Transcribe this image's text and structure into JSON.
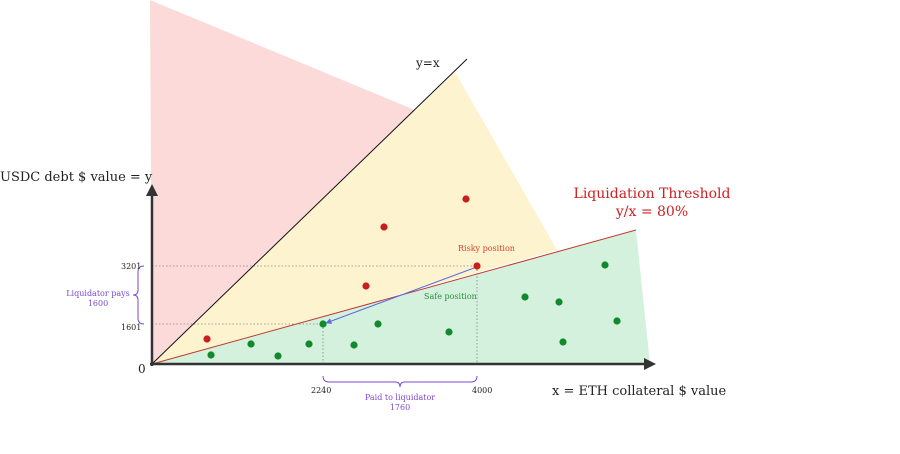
{
  "labels": {
    "identity_line": "y=x",
    "y_axis": "USDC debt $ value = y",
    "x_axis": "x = ETH collateral $ value",
    "origin": "0",
    "threshold_title": "Liquidation Threshold",
    "threshold_ratio": "y/x = 80%",
    "risky": "Risky position",
    "safe": "Safe position",
    "liq_pays_line1": "Liquidator pays",
    "liq_pays_line2": "1600",
    "paid_line1": "Paid to liquidator",
    "paid_line2": "1760"
  },
  "ticks": {
    "y_upper": "3201",
    "y_lower": "1601",
    "x_left": "2240",
    "x_right": "4000"
  },
  "colors": {
    "pink_region": "#fcdada",
    "yellow_region": "#fdf3cf",
    "green_region": "#d3f1dc",
    "axis": "#333333",
    "identity_line": "#111111",
    "threshold_line": "#c0392b",
    "red_dot": "#c81e1e",
    "green_dot": "#12892d",
    "purple": "#7b47d6",
    "arrow": "#5a6be0",
    "risky_text": "#d9412f",
    "safe_text": "#2e8b3e",
    "threshold_text": "#d11f1f"
  },
  "red_dots": [
    [
      207,
      339
    ],
    [
      366,
      286
    ],
    [
      384,
      227
    ],
    [
      466,
      199
    ],
    [
      477,
      266
    ]
  ],
  "green_dots": [
    [
      211,
      355
    ],
    [
      251,
      344
    ],
    [
      278,
      356
    ],
    [
      309,
      344
    ],
    [
      323,
      324
    ],
    [
      354,
      345
    ],
    [
      378,
      324
    ],
    [
      449,
      332
    ],
    [
      525,
      297
    ],
    [
      559,
      302
    ],
    [
      563,
      342
    ],
    [
      605,
      265
    ],
    [
      617,
      321
    ]
  ]
}
